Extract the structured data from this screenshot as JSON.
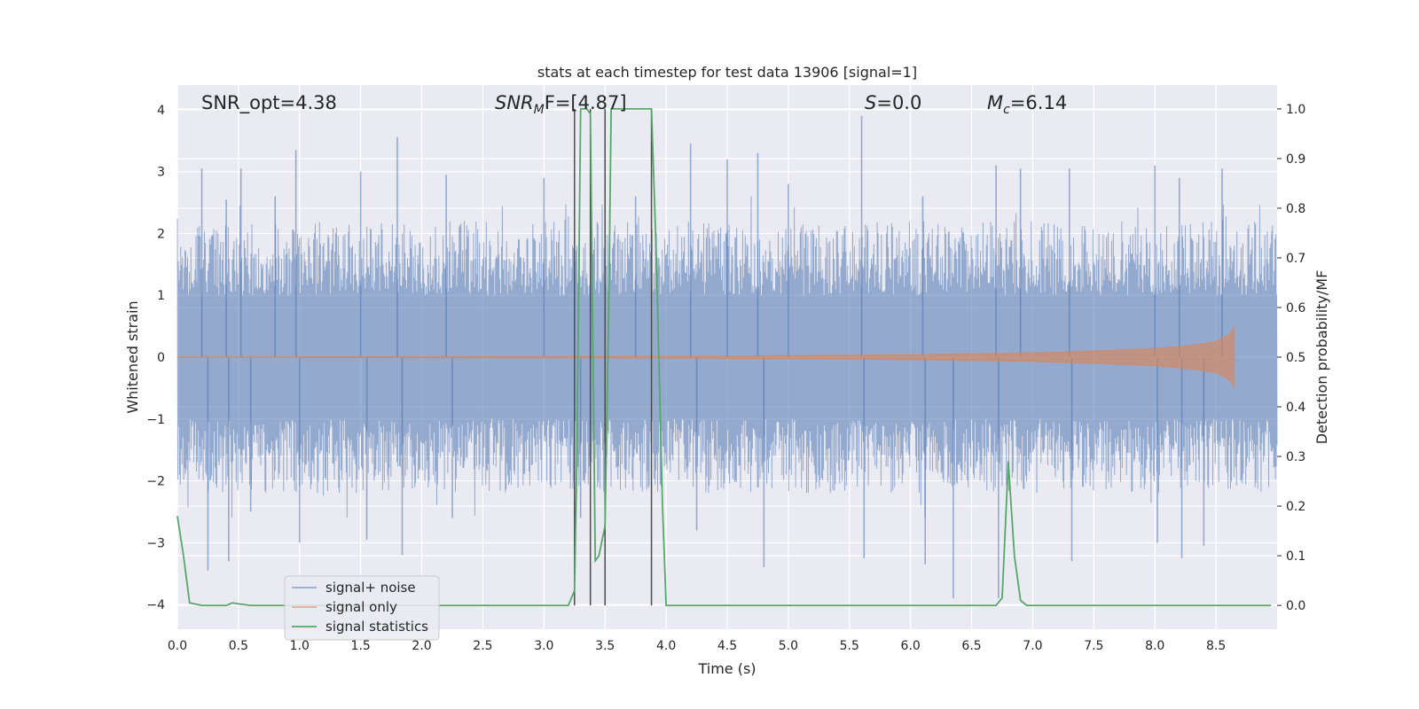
{
  "chart_data": {
    "type": "line",
    "title": "stats at each timestep for test data 13906 [signal=1]",
    "xlabel": "Time (s)",
    "ylabel": "Whitened strain",
    "ylabel_right": "Detection probability/MF",
    "xlim": [
      0.0,
      9.0
    ],
    "ylim": [
      -4.4,
      4.4
    ],
    "ylim_right": [
      -0.048,
      1.048
    ],
    "xticks": [
      0.0,
      0.5,
      1.0,
      1.5,
      2.0,
      2.5,
      3.0,
      3.5,
      4.0,
      4.5,
      5.0,
      5.5,
      6.0,
      6.5,
      7.0,
      7.5,
      8.0,
      8.5
    ],
    "xtick_labels": [
      "0.0",
      "0.5",
      "1.0",
      "1.5",
      "2.0",
      "2.5",
      "3.0",
      "3.5",
      "4.0",
      "4.5",
      "5.0",
      "5.5",
      "6.0",
      "6.5",
      "7.0",
      "7.5",
      "8.0",
      "8.5"
    ],
    "yticks": [
      4,
      3,
      2,
      1,
      0,
      -1,
      -2,
      -3,
      -4
    ],
    "ytick_labels": [
      "4",
      "3",
      "2",
      "1",
      "0",
      "−1",
      "−2",
      "−3",
      "−4"
    ],
    "yticks_right": [
      1.0,
      0.9,
      0.8,
      0.7,
      0.6,
      0.5,
      0.4,
      0.3,
      0.2,
      0.1,
      0.0
    ],
    "ytick_labels_right": [
      "1.0",
      "0.9",
      "0.8",
      "0.7",
      "0.6",
      "0.5",
      "0.4",
      "0.3",
      "0.2",
      "0.1",
      "0.0"
    ],
    "grid": true,
    "legend_position": "lower-left",
    "annotations": {
      "snr_opt": "SNR_opt=4.38",
      "snr_mf_main": "SNR",
      "snr_mf_sub": "M",
      "snr_mf_rest": "F=[4.87]",
      "s_italic": "S",
      "s_rest": "=0.0",
      "mc_main": "M",
      "mc_sub": "c",
      "mc_rest": "=6.14"
    },
    "series": [
      {
        "name": "signal+ noise",
        "color": "#4c72b0",
        "kind": "noise",
        "x_range": [
          0.0,
          9.0
        ],
        "typical_amplitude": 1.6,
        "extreme_points": [
          [
            0.2,
            3.05
          ],
          [
            0.25,
            -3.45
          ],
          [
            0.4,
            2.55
          ],
          [
            0.42,
            -3.3
          ],
          [
            0.52,
            3.05
          ],
          [
            0.6,
            -2.5
          ],
          [
            0.8,
            2.6
          ],
          [
            0.97,
            3.35
          ],
          [
            1.0,
            -3.0
          ],
          [
            1.5,
            3.0
          ],
          [
            1.55,
            -2.95
          ],
          [
            1.8,
            3.55
          ],
          [
            1.84,
            -3.2
          ],
          [
            2.2,
            2.95
          ],
          [
            2.25,
            -2.6
          ],
          [
            3.0,
            2.9
          ],
          [
            3.3,
            -2.6
          ],
          [
            3.75,
            2.6
          ],
          [
            4.2,
            3.45
          ],
          [
            4.25,
            -2.8
          ],
          [
            4.5,
            3.2
          ],
          [
            4.75,
            3.3
          ],
          [
            4.8,
            -3.4
          ],
          [
            5.0,
            2.8
          ],
          [
            5.6,
            3.9
          ],
          [
            5.62,
            -3.25
          ],
          [
            6.1,
            2.6
          ],
          [
            6.12,
            -3.35
          ],
          [
            6.35,
            -3.9
          ],
          [
            6.7,
            3.1
          ],
          [
            6.72,
            -3.9
          ],
          [
            6.9,
            3.05
          ],
          [
            7.3,
            3.05
          ],
          [
            7.32,
            -3.3
          ],
          [
            8.0,
            3.1
          ],
          [
            8.02,
            -3.0
          ],
          [
            8.2,
            2.9
          ],
          [
            8.22,
            -3.25
          ],
          [
            8.4,
            -3.05
          ],
          [
            8.55,
            3.05
          ]
        ]
      },
      {
        "name": "signal only",
        "color": "#dd8452",
        "kind": "chirp",
        "x_range": [
          0.0,
          8.65
        ],
        "envelope": [
          [
            0.0,
            0.005
          ],
          [
            2.0,
            0.008
          ],
          [
            4.0,
            0.015
          ],
          [
            5.0,
            0.025
          ],
          [
            6.0,
            0.04
          ],
          [
            7.0,
            0.07
          ],
          [
            7.5,
            0.1
          ],
          [
            8.0,
            0.14
          ],
          [
            8.3,
            0.19
          ],
          [
            8.5,
            0.25
          ],
          [
            8.62,
            0.38
          ],
          [
            8.65,
            0.5
          ]
        ]
      },
      {
        "name": "signal statistics",
        "color": "#55a868",
        "axis": "right",
        "x": [
          0.0,
          0.05,
          0.1,
          0.2,
          0.3,
          0.4,
          0.45,
          0.5,
          0.6,
          1.0,
          2.0,
          3.0,
          3.2,
          3.25,
          3.27,
          3.3,
          3.35,
          3.38,
          3.42,
          3.45,
          3.5,
          3.53,
          3.55,
          3.6,
          3.7,
          3.8,
          3.88,
          3.92,
          3.97,
          4.0,
          4.05,
          5.0,
          6.0,
          6.5,
          6.7,
          6.75,
          6.8,
          6.85,
          6.9,
          6.95,
          7.0,
          8.0,
          8.95
        ],
        "y": [
          0.18,
          0.1,
          0.005,
          0.0,
          0.0,
          0.0,
          0.005,
          0.003,
          0.0,
          0.0,
          0.0,
          0.0,
          0.0,
          0.03,
          0.3,
          1.0,
          1.0,
          0.99,
          0.09,
          0.1,
          0.16,
          0.6,
          1.0,
          1.0,
          1.0,
          1.0,
          1.0,
          0.7,
          0.2,
          0.0,
          0.0,
          0.0,
          0.0,
          0.0,
          0.0,
          0.015,
          0.29,
          0.1,
          0.01,
          0.0,
          0.0,
          0.0,
          0.0
        ]
      }
    ],
    "vertical_lines": [
      3.25,
      3.38,
      3.5,
      3.88
    ],
    "vertical_line_color": "#4d4d4d",
    "vertical_line_range": [
      0.0,
      1.0
    ],
    "colors": {
      "axes_background": "#eaeaf2",
      "grid": "#ffffff",
      "text": "#262626"
    }
  }
}
